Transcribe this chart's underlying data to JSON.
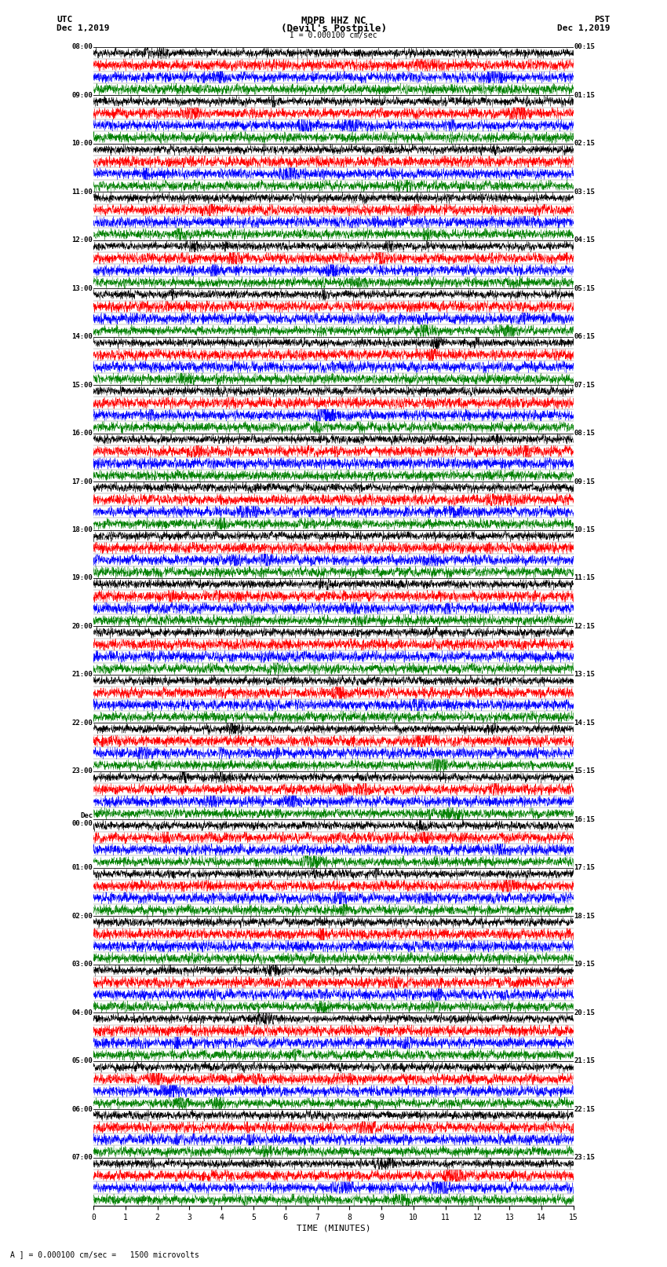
{
  "title_line1": "MDPB HHZ NC",
  "title_line2": "(Devil's Postpile)",
  "scale_label": "I = 0.000100 cm/sec",
  "left_header": "UTC",
  "left_date": "Dec 1,2019",
  "right_header": "PST",
  "right_date": "Dec 1,2019",
  "xlabel": "TIME (MINUTES)",
  "footnote": "A ] = 0.000100 cm/sec =   1500 microvolts",
  "utc_labels": [
    "08:00",
    "09:00",
    "10:00",
    "11:00",
    "12:00",
    "13:00",
    "14:00",
    "15:00",
    "16:00",
    "17:00",
    "18:00",
    "19:00",
    "20:00",
    "21:00",
    "22:00",
    "23:00",
    "Dec\n00:00",
    "01:00",
    "02:00",
    "03:00",
    "04:00",
    "05:00",
    "06:00",
    "07:00"
  ],
  "pst_labels": [
    "00:15",
    "01:15",
    "02:15",
    "03:15",
    "04:15",
    "05:15",
    "06:15",
    "07:15",
    "08:15",
    "09:15",
    "10:15",
    "11:15",
    "12:15",
    "13:15",
    "14:15",
    "15:15",
    "16:15",
    "17:15",
    "18:15",
    "19:15",
    "20:15",
    "21:15",
    "22:15",
    "23:15"
  ],
  "n_hours": 24,
  "subtraces_per_hour": 4,
  "minutes": 15,
  "n_pts": 3600,
  "subtrace_colors": [
    "black",
    "red",
    "blue",
    "green"
  ],
  "subtrace_amplitudes": [
    0.35,
    0.45,
    0.45,
    0.4
  ],
  "bg_color": "white",
  "seed": 12345,
  "lw": 0.25
}
